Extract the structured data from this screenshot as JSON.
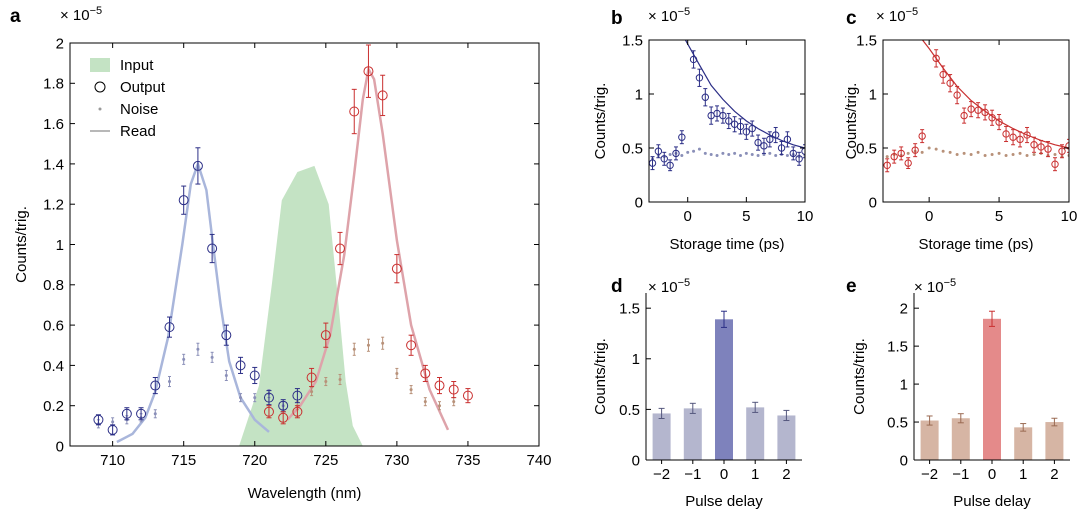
{
  "chart_data": [
    {
      "panel": "a",
      "type": "line",
      "xlabel": "Wavelength (nm)",
      "ylabel": "Counts/trig.",
      "exponent": "× 10",
      "exponent_power": "−5",
      "xlim": [
        707,
        740
      ],
      "ylim": [
        0,
        2
      ],
      "xticks": [
        710,
        715,
        720,
        725,
        730,
        735,
        740
      ],
      "xtick_labels": [
        "710",
        "715",
        "720",
        "725",
        "730",
        "735",
        "740"
      ],
      "yticks": [
        0,
        0.2,
        0.4,
        0.6,
        0.8,
        1,
        1.2,
        1.4,
        1.6,
        1.8,
        2
      ],
      "ytick_labels": [
        "0",
        "0.2",
        "0.4",
        "0.6",
        "0.8",
        "1",
        "1.2",
        "1.4",
        "1.6",
        "1.8",
        "2"
      ],
      "legend": {
        "position": "top-left",
        "entries": [
          {
            "label": "Input",
            "symbol": "area",
            "color": "#c4e3c4"
          },
          {
            "label": "Output",
            "symbol": "circle",
            "color": "#000000"
          },
          {
            "label": "Noise",
            "symbol": "dot",
            "color": "#999999"
          },
          {
            "label": "Read",
            "symbol": "line",
            "color": "#b8b8b8"
          }
        ]
      },
      "input_area": {
        "color": "#c4e3c4",
        "x": [
          718.9,
          720.3,
          721.2,
          721.9,
          723.0,
          724.2,
          725.2,
          725.9,
          726.4,
          726.9,
          727.6
        ],
        "y": [
          0,
          0.3,
          0.8,
          1.22,
          1.36,
          1.39,
          1.2,
          0.7,
          0.32,
          0.1,
          0
        ]
      },
      "read_blue": {
        "color": "#a9b6db",
        "x": [
          710.3,
          711.4,
          712.3,
          713.0,
          713.9,
          714.9,
          715.5,
          716.0,
          716.6,
          717.1,
          717.6,
          718.2,
          719.0,
          720.0,
          721.0
        ],
        "y": [
          0.02,
          0.06,
          0.14,
          0.27,
          0.54,
          1.0,
          1.3,
          1.4,
          1.27,
          0.98,
          0.7,
          0.42,
          0.24,
          0.13,
          0.07
        ]
      },
      "read_red": {
        "color": "#dea3aa",
        "x": [
          722.3,
          723.2,
          724.3,
          725.3,
          726.3,
          727.0,
          727.6,
          728.0,
          728.4,
          729.0,
          730.0,
          731.0,
          732.3,
          733.6
        ],
        "y": [
          0.13,
          0.2,
          0.32,
          0.55,
          0.95,
          1.35,
          1.72,
          1.87,
          1.82,
          1.55,
          1.02,
          0.6,
          0.28,
          0.08
        ]
      },
      "output_blue": {
        "color": "#2b2e86",
        "x": [
          709,
          710,
          711,
          712,
          713,
          714,
          715,
          716,
          717,
          718,
          719,
          720,
          721,
          722,
          723
        ],
        "y": [
          0.13,
          0.08,
          0.16,
          0.16,
          0.3,
          0.59,
          1.22,
          1.39,
          0.98,
          0.55,
          0.4,
          0.35,
          0.24,
          0.2,
          0.25
        ],
        "err": [
          0.025,
          0.025,
          0.03,
          0.03,
          0.04,
          0.05,
          0.07,
          0.09,
          0.07,
          0.05,
          0.04,
          0.04,
          0.035,
          0.03,
          0.035
        ]
      },
      "output_red": {
        "color": "#c92f2f",
        "x": [
          721,
          722,
          723,
          724,
          725,
          726,
          727,
          728,
          729,
          730,
          731,
          732,
          733,
          734,
          735
        ],
        "y": [
          0.17,
          0.14,
          0.17,
          0.34,
          0.55,
          0.98,
          1.66,
          1.86,
          1.74,
          0.88,
          0.5,
          0.36,
          0.3,
          0.28,
          0.25
        ],
        "err": [
          0.03,
          0.03,
          0.03,
          0.045,
          0.06,
          0.08,
          0.11,
          0.13,
          0.1,
          0.07,
          0.05,
          0.04,
          0.04,
          0.04,
          0.035
        ]
      },
      "noise_blue": {
        "color": "#8a8fb8",
        "x": [
          709,
          710,
          711,
          712,
          713,
          714,
          715,
          716,
          717,
          718,
          719,
          720,
          721,
          722
        ],
        "y": [
          0.11,
          0.12,
          0.13,
          0.14,
          0.16,
          0.32,
          0.43,
          0.48,
          0.44,
          0.35,
          0.24,
          0.24,
          0.26,
          0.2
        ],
        "err": [
          0.02,
          0.02,
          0.02,
          0.02,
          0.02,
          0.025,
          0.025,
          0.03,
          0.025,
          0.025,
          0.02,
          0.02,
          0.02,
          0.02
        ]
      },
      "noise_red": {
        "color": "#b89179",
        "x": [
          723,
          724,
          725,
          726,
          727,
          728,
          729,
          730,
          731,
          732,
          733,
          734
        ],
        "y": [
          0.2,
          0.27,
          0.32,
          0.33,
          0.48,
          0.5,
          0.51,
          0.36,
          0.28,
          0.22,
          0.2,
          0.22
        ],
        "err": [
          0.02,
          0.02,
          0.02,
          0.025,
          0.03,
          0.03,
          0.03,
          0.025,
          0.02,
          0.02,
          0.02,
          0.02
        ]
      }
    },
    {
      "panel": "b",
      "type": "scatter",
      "xlabel": "Storage time (ps)",
      "ylabel": "Counts/trig.",
      "exponent": "× 10",
      "exponent_power": "−5",
      "xlim": [
        -3.3,
        10
      ],
      "ylim": [
        0,
        1.5
      ],
      "xticks": [
        0,
        5,
        10
      ],
      "xtick_labels": [
        "0",
        "5",
        "10"
      ],
      "yticks": [
        0,
        0.5,
        1,
        1.5
      ],
      "ytick_labels": [
        "0",
        "0.5",
        "1",
        "1.5"
      ],
      "color": "#2b2e86",
      "noise_color": "#8a8fb8",
      "fit": {
        "x": [
          -0.3,
          1,
          2,
          3,
          4,
          5,
          6,
          7,
          8,
          9,
          10
        ],
        "y": [
          1.52,
          1.27,
          1.08,
          0.95,
          0.84,
          0.75,
          0.68,
          0.62,
          0.57,
          0.53,
          0.5
        ]
      },
      "signal": {
        "x": [
          -3,
          -2.5,
          -2,
          -1.5,
          -1,
          -0.5,
          0.5,
          1,
          1.5,
          2,
          2.5,
          3,
          3.5,
          4,
          4.5,
          5,
          5.5,
          6,
          6.5,
          7,
          7.5,
          8,
          8.5,
          9,
          9.5,
          10
        ],
        "y": [
          0.36,
          0.47,
          0.4,
          0.34,
          0.45,
          0.6,
          1.32,
          1.15,
          0.97,
          0.8,
          0.82,
          0.8,
          0.75,
          0.72,
          0.7,
          0.65,
          0.68,
          0.55,
          0.52,
          0.58,
          0.62,
          0.5,
          0.58,
          0.45,
          0.4,
          0.47
        ],
        "err": [
          0.06,
          0.06,
          0.06,
          0.05,
          0.06,
          0.06,
          0.08,
          0.08,
          0.08,
          0.08,
          0.07,
          0.07,
          0.07,
          0.07,
          0.07,
          0.07,
          0.07,
          0.07,
          0.07,
          0.07,
          0.07,
          0.06,
          0.07,
          0.06,
          0.06,
          0.06
        ]
      },
      "noise": {
        "x": [
          -3,
          -2.5,
          -2,
          -1.5,
          -1,
          -0.5,
          0,
          0.5,
          1,
          1.5,
          2,
          2.5,
          3,
          3.5,
          4,
          4.5,
          5,
          5.5,
          6,
          6.5,
          7,
          7.5,
          8,
          8.5,
          9,
          9.5,
          10
        ],
        "y": [
          0.4,
          0.43,
          0.42,
          0.44,
          0.45,
          0.43,
          0.46,
          0.47,
          0.49,
          0.45,
          0.44,
          0.43,
          0.45,
          0.44,
          0.45,
          0.43,
          0.45,
          0.44,
          0.43,
          0.44,
          0.45,
          0.43,
          0.44,
          0.43,
          0.44,
          0.42,
          0.43
        ]
      }
    },
    {
      "panel": "c",
      "type": "scatter",
      "xlabel": "Storage time (ps)",
      "ylabel": "Counts/trig.",
      "exponent": "× 10",
      "exponent_power": "−5",
      "xlim": [
        -3.3,
        10
      ],
      "ylim": [
        0,
        1.5
      ],
      "xticks": [
        0,
        5,
        10
      ],
      "xtick_labels": [
        "0",
        "5",
        "10"
      ],
      "yticks": [
        0,
        0.5,
        1,
        1.5
      ],
      "ytick_labels": [
        "0",
        "0.5",
        "1",
        "1.5"
      ],
      "color": "#c92f2f",
      "noise_color": "#b89179",
      "fit": {
        "x": [
          -0.6,
          0,
          1,
          2,
          3,
          4,
          5,
          6,
          7,
          8,
          9,
          10
        ],
        "y": [
          1.52,
          1.42,
          1.24,
          1.07,
          0.94,
          0.84,
          0.75,
          0.68,
          0.62,
          0.57,
          0.53,
          0.5
        ]
      },
      "signal": {
        "x": [
          -3,
          -2.5,
          -2,
          -1.5,
          -1,
          -0.5,
          0.5,
          1,
          1.5,
          2,
          2.5,
          3,
          3.5,
          4,
          4.5,
          5,
          5.5,
          6,
          6.5,
          7,
          7.5,
          8,
          8.5,
          9,
          9.5,
          10
        ],
        "y": [
          0.34,
          0.42,
          0.45,
          0.36,
          0.48,
          0.61,
          1.33,
          1.18,
          1.1,
          0.99,
          0.8,
          0.86,
          0.85,
          0.83,
          0.78,
          0.74,
          0.63,
          0.6,
          0.58,
          0.62,
          0.53,
          0.51,
          0.49,
          0.35,
          0.47,
          0.52
        ],
        "err": [
          0.06,
          0.06,
          0.06,
          0.05,
          0.06,
          0.06,
          0.08,
          0.08,
          0.08,
          0.08,
          0.07,
          0.07,
          0.07,
          0.07,
          0.07,
          0.07,
          0.07,
          0.07,
          0.07,
          0.07,
          0.07,
          0.06,
          0.07,
          0.06,
          0.06,
          0.06
        ]
      },
      "noise": {
        "x": [
          -3,
          -2.5,
          -2,
          -1.5,
          -1,
          -0.5,
          0,
          0.5,
          1,
          1.5,
          2,
          2.5,
          3,
          3.5,
          4,
          4.5,
          5,
          5.5,
          6,
          6.5,
          7,
          7.5,
          8,
          8.5,
          9,
          9.5,
          10
        ],
        "y": [
          0.42,
          0.44,
          0.43,
          0.45,
          0.47,
          0.46,
          0.5,
          0.49,
          0.47,
          0.46,
          0.44,
          0.45,
          0.44,
          0.46,
          0.43,
          0.44,
          0.45,
          0.43,
          0.44,
          0.45,
          0.43,
          0.44,
          0.45,
          0.43,
          0.44,
          0.42,
          0.43
        ]
      }
    },
    {
      "panel": "d",
      "type": "bar",
      "xlabel": "Pulse delay",
      "ylabel": "Counts/trig.",
      "exponent": "× 10",
      "exponent_power": "−5",
      "ylim": [
        0,
        1.65
      ],
      "yticks": [
        0,
        0.5,
        1,
        1.5
      ],
      "ytick_labels": [
        "0",
        "0.5",
        "1",
        "1.5"
      ],
      "categories": [
        "−2",
        "−1",
        "0",
        "1",
        "2"
      ],
      "values": [
        0.46,
        0.51,
        1.39,
        0.52,
        0.44
      ],
      "errors": [
        0.05,
        0.05,
        0.08,
        0.05,
        0.05
      ],
      "colors": [
        "#b4b6ce",
        "#b4b6ce",
        "#7e82bc",
        "#b4b6ce",
        "#b4b6ce"
      ],
      "err_colors": [
        "#55587e",
        "#55587e",
        "#2b2e86",
        "#55587e",
        "#55587e"
      ]
    },
    {
      "panel": "e",
      "type": "bar",
      "xlabel": "Pulse delay",
      "ylabel": "Counts/trig.",
      "exponent": "× 10",
      "exponent_power": "−5",
      "ylim": [
        0,
        2.2
      ],
      "yticks": [
        0,
        0.5,
        1,
        1.5,
        2
      ],
      "ytick_labels": [
        "0",
        "0.5",
        "1",
        "1.5",
        "2"
      ],
      "categories": [
        "−2",
        "−1",
        "0",
        "1",
        "2"
      ],
      "values": [
        0.52,
        0.55,
        1.86,
        0.43,
        0.5
      ],
      "errors": [
        0.06,
        0.06,
        0.1,
        0.05,
        0.05
      ],
      "colors": [
        "#d6b5a4",
        "#d6b5a4",
        "#e48a8a",
        "#d6b5a4",
        "#d6b5a4"
      ],
      "err_colors": [
        "#9a6a52",
        "#9a6a52",
        "#c92f2f",
        "#9a6a52",
        "#9a6a52"
      ]
    }
  ]
}
